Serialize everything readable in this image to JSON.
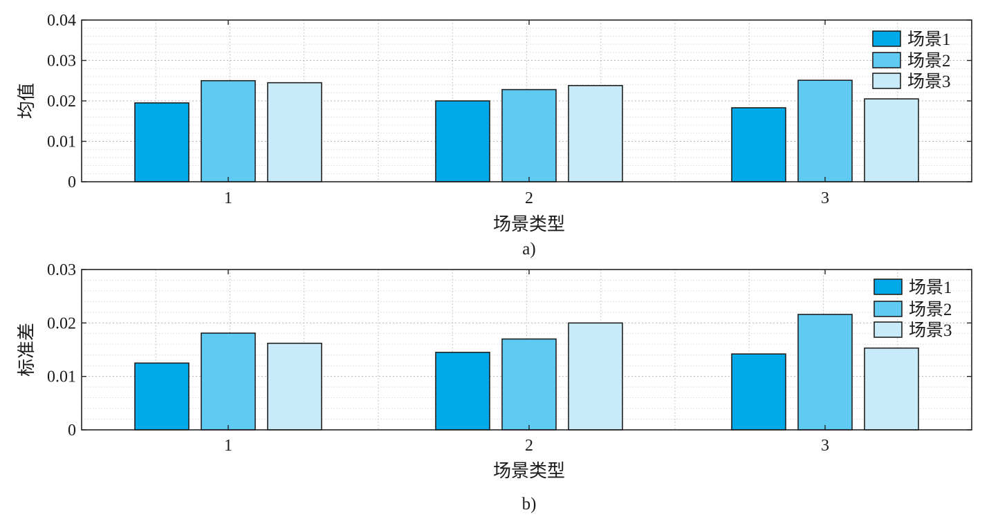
{
  "colors": {
    "series": [
      "#00a9e8",
      "#5fcbf2",
      "#c9eaf8"
    ],
    "bar_stroke": "#1f1f1f",
    "axis": "#222222",
    "major_grid": "#b5b5b5",
    "minor_grid": "#d6d6d6"
  },
  "chart_data": [
    {
      "type": "bar",
      "caption": "a)",
      "categories": [
        "1",
        "2",
        "3"
      ],
      "series": [
        {
          "name": "场景1",
          "values": [
            0.0195,
            0.02,
            0.0183
          ]
        },
        {
          "name": "场景2",
          "values": [
            0.025,
            0.0228,
            0.0251
          ]
        },
        {
          "name": "场景3",
          "values": [
            0.0245,
            0.0238,
            0.0205
          ]
        }
      ],
      "xlabel": "场景类型",
      "ylabel": "均值",
      "ylim": [
        0,
        0.04
      ],
      "yticks": [
        "0",
        "0.01",
        "0.02",
        "0.03",
        "0.04"
      ],
      "grid": true,
      "minor_grid": true,
      "legend_position": "top-right"
    },
    {
      "type": "bar",
      "caption": "b)",
      "categories": [
        "1",
        "2",
        "3"
      ],
      "series": [
        {
          "name": "场景1",
          "values": [
            0.0125,
            0.0145,
            0.0142
          ]
        },
        {
          "name": "场景2",
          "values": [
            0.0181,
            0.017,
            0.0216
          ]
        },
        {
          "name": "场景3",
          "values": [
            0.0162,
            0.02,
            0.0153
          ]
        }
      ],
      "xlabel": "场景类型",
      "ylabel": "标准差",
      "ylim": [
        0,
        0.03
      ],
      "yticks": [
        "0",
        "0.01",
        "0.02",
        "0.03"
      ],
      "grid": true,
      "minor_grid": true,
      "legend_position": "top-right"
    }
  ]
}
